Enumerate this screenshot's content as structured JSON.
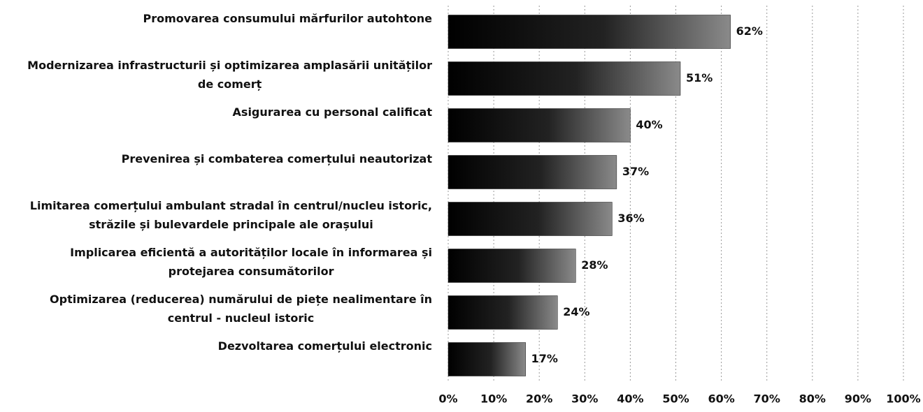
{
  "chart_data": {
    "type": "hbar",
    "categories": [
      [
        "Promovarea consumului mărfurilor autohtone"
      ],
      [
        "Modernizarea infrastructurii și  optimizarea amplasării unităților",
        "de comerț"
      ],
      [
        "Asigurarea cu personal calificat"
      ],
      [
        "Prevenirea și combaterea comerțului neautorizat"
      ],
      [
        "Limitarea comerțului ambulant stradal în centrul/nucleu istoric,",
        "străzile și bulevardele principale ale orașului"
      ],
      [
        "Implicarea eficientă a autorităților locale în informarea și",
        "protejarea consumătorilor"
      ],
      [
        "Optimizarea (reducerea) numărului de piețe nealimentare în",
        "centrul - nucleul istoric"
      ],
      [
        "Dezvoltarea comerțului electronic"
      ]
    ],
    "values": [
      62,
      51,
      40,
      37,
      36,
      28,
      24,
      17
    ],
    "value_labels": [
      "62%",
      "51%",
      "40%",
      "37%",
      "36%",
      "28%",
      "24%",
      "17%"
    ],
    "color": "#111111",
    "xlim": [
      0,
      100
    ],
    "xticks": [
      {
        "value": 0,
        "label": "0%"
      },
      {
        "value": 10,
        "label": "10%"
      },
      {
        "value": 20,
        "label": "20%"
      },
      {
        "value": 30,
        "label": "30%"
      },
      {
        "value": 40,
        "label": "40%"
      },
      {
        "value": 50,
        "label": "50%"
      },
      {
        "value": 60,
        "label": "60%"
      },
      {
        "value": 70,
        "label": "70%"
      },
      {
        "value": 80,
        "label": "80%"
      },
      {
        "value": 90,
        "label": "90%"
      },
      {
        "value": 100,
        "label": "100%"
      }
    ],
    "grid": true
  }
}
